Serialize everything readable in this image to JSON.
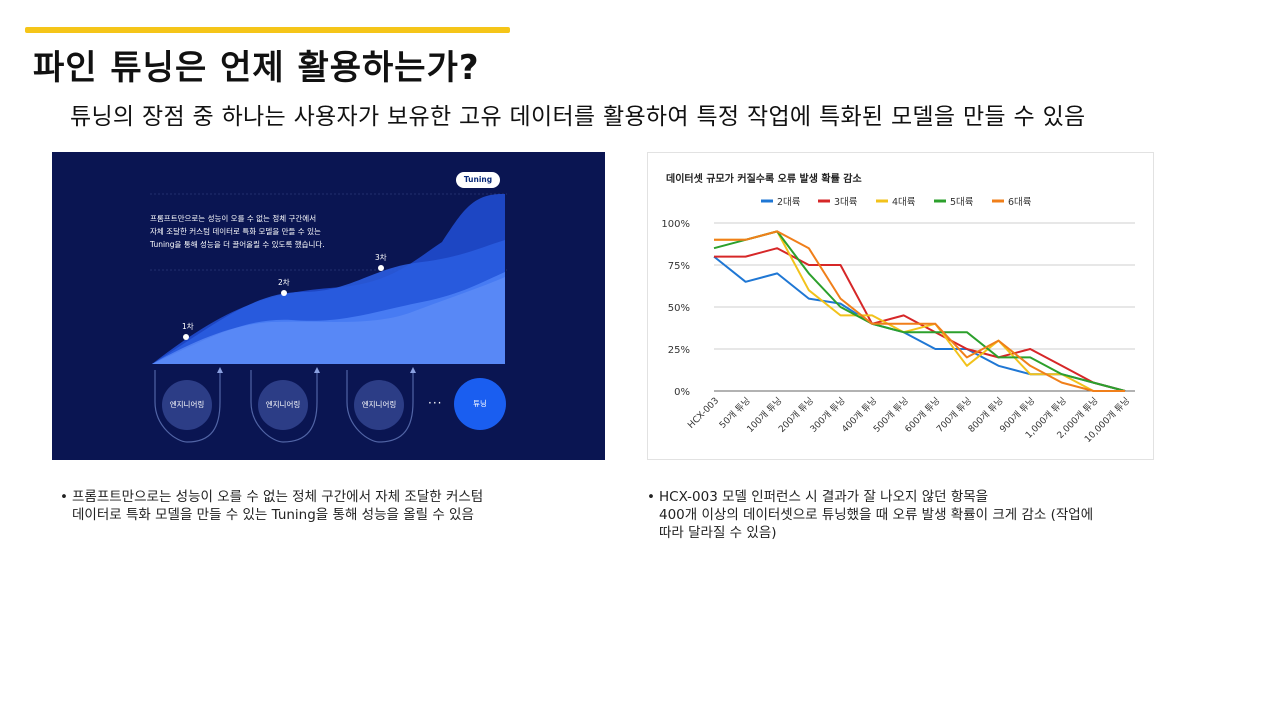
{
  "slide": {
    "title": "파인 튜닝은 언제 활용하는가?",
    "subtitle": "튜닝의 장점 중 하나는 사용자가 보유한 고유 데이터를 활용하여 특정 작업에 특화된 모델을 만들 수 있음",
    "accent_color": "#f5c518"
  },
  "left_figure": {
    "description_lines": [
      "프롬프트만으로는 성능이 오를 수 없는 정체 구간에서",
      "자체 조달한 커스텀 데이터로 특화 모델을 만들 수 있는",
      "Tuning을 통해 성능을 더 끌어올릴 수 있도록 했습니다."
    ],
    "tuning_tag": "Tuning",
    "stages": [
      "1차",
      "2차",
      "3차"
    ],
    "nodes": [
      "엔지니어링",
      "엔지니어링",
      "엔지니어링"
    ],
    "ellipsis": "···",
    "tune_node": "튜닝",
    "bg_color": "#0a1552"
  },
  "chart_data": {
    "type": "line",
    "title": "데이터셋 규모가 커질수록 오류 발생 확률 감소",
    "categories": [
      "HCX-003",
      "50개 튜닝",
      "100개 튜닝",
      "200개 튜닝",
      "300개 튜닝",
      "400개 튜닝",
      "500개 튜닝",
      "600개 튜닝",
      "700개 튜닝",
      "800개 튜닝",
      "900개 튜닝",
      "1,000개 튜닝",
      "2,000개 튜닝",
      "10,000개 튜닝"
    ],
    "y_ticks": [
      "100%",
      "75%",
      "50%",
      "25%",
      "0%"
    ],
    "ylim": [
      0,
      100
    ],
    "grid": true,
    "legend_position": "top",
    "series": [
      {
        "name": "2대륙",
        "color": "#1f77d4",
        "values": [
          80,
          65,
          70,
          55,
          52,
          40,
          35,
          25,
          25,
          15,
          10,
          10,
          5,
          0
        ]
      },
      {
        "name": "3대륙",
        "color": "#d62728",
        "values": [
          80,
          80,
          85,
          75,
          75,
          40,
          45,
          35,
          25,
          20,
          25,
          15,
          5,
          0
        ]
      },
      {
        "name": "4대륙",
        "color": "#f2c21b",
        "values": [
          90,
          90,
          95,
          60,
          45,
          45,
          35,
          40,
          15,
          30,
          10,
          10,
          0,
          0
        ]
      },
      {
        "name": "5대륙",
        "color": "#2ca02c",
        "values": [
          85,
          90,
          95,
          70,
          50,
          40,
          35,
          35,
          35,
          20,
          20,
          10,
          5,
          0
        ]
      },
      {
        "name": "6대륙",
        "color": "#f07f1a",
        "values": [
          90,
          90,
          95,
          85,
          55,
          40,
          40,
          40,
          20,
          30,
          15,
          5,
          0,
          0
        ]
      }
    ]
  },
  "notes": {
    "left": [
      "프롬프트만으로는 성능이 오를 수 없는 정체 구간에서 자체 조달한 커스텀",
      "데이터로 특화 모델을 만들 수 있는 Tuning을 통해 성능을 올릴 수 있음"
    ],
    "right": [
      "HCX-003 모델 인퍼런스 시 결과가 잘 나오지 않던 항목을",
      "400개 이상의 데이터셋으로 튜닝했을 때 오류 발생 확률이 크게 감소 (작업에",
      "따라 달라질 수 있음)"
    ],
    "bullet": "•"
  }
}
